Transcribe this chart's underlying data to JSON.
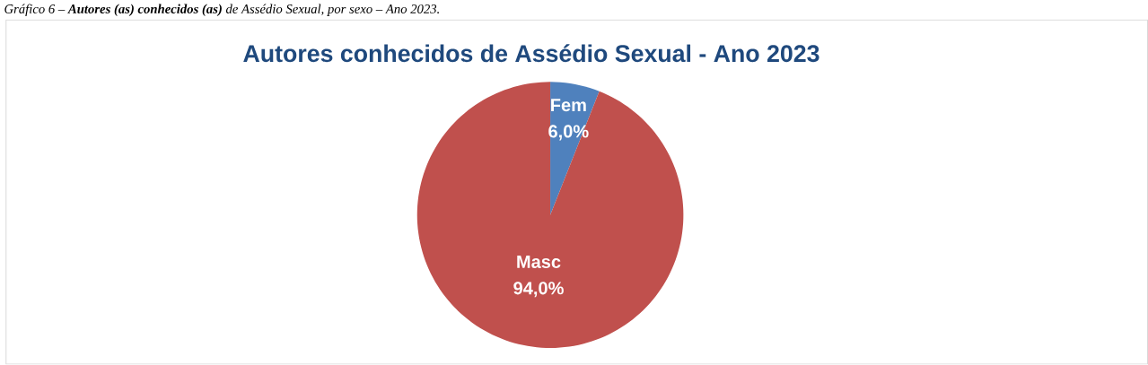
{
  "chart_data": {
    "type": "pie",
    "title": "Autores conhecidos de Assédio Sexual - Ano 2023",
    "annotations": [
      "Gráfico 6 – **Autores (as) conhecidos (as)** de Assédio Sexual, por sexo – Ano 2023."
    ],
    "categories": [
      "Fem",
      "Masc"
    ],
    "values": [
      6.0,
      94.0
    ],
    "value_labels": [
      "6,0%",
      "94,0%"
    ],
    "colors": [
      "#4f81bd",
      "#c0504d"
    ]
  }
}
